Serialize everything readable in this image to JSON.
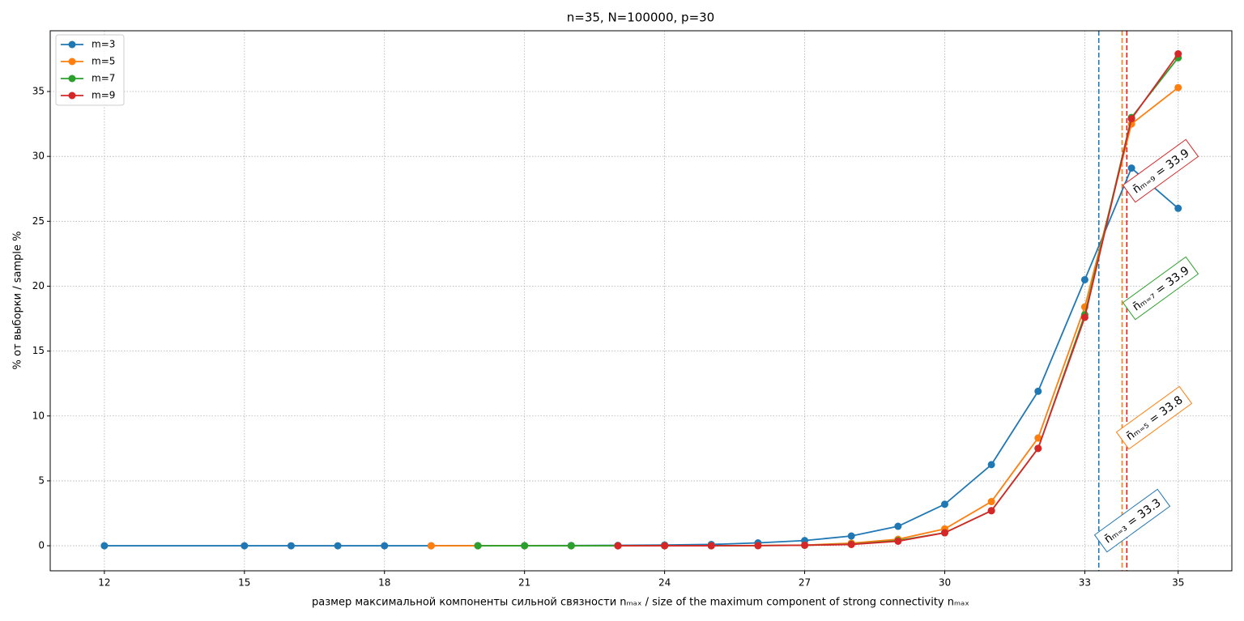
{
  "chart_data": {
    "type": "line",
    "title": "n=35, N=100000, p=30",
    "x_label": "размер максимальной компоненты сильной связности nₘₐₓ / size of the maximum component of strong connectivity nₘₐₓ",
    "y_label": "% от выборки / sample %",
    "xlim": [
      10.84,
      36.15
    ],
    "ylim": [
      -1.93,
      39.68
    ],
    "xticks": [
      12,
      15,
      18,
      21,
      24,
      27,
      30,
      33,
      35
    ],
    "yticks": [
      0,
      5,
      10,
      15,
      20,
      25,
      30,
      35
    ],
    "grid": true,
    "legend": "upper left",
    "series": [
      {
        "name": "m=3",
        "color": "#1f77b4",
        "x": [
          12,
          15,
          16,
          17,
          18,
          19,
          20,
          21,
          22,
          23,
          24,
          25,
          26,
          27,
          28,
          29,
          30,
          31,
          32,
          33,
          34,
          35
        ],
        "values": [
          0,
          0,
          0,
          0,
          0,
          0,
          0.01,
          0.01,
          0.02,
          0.03,
          0.06,
          0.1,
          0.22,
          0.4,
          0.75,
          1.5,
          3.2,
          6.25,
          11.9,
          20.5,
          29.1,
          26.0
        ]
      },
      {
        "name": "m=5",
        "color": "#ff7f0e",
        "x": [
          19,
          20,
          21,
          22,
          23,
          24,
          25,
          26,
          27,
          28,
          29,
          30,
          31,
          32,
          33,
          34,
          35
        ],
        "values": [
          0,
          0,
          0,
          0,
          0,
          0.01,
          0.01,
          0.02,
          0.05,
          0.2,
          0.5,
          1.3,
          3.4,
          8.3,
          18.4,
          32.5,
          35.3
        ]
      },
      {
        "name": "m=7",
        "color": "#2ca02c",
        "x": [
          20,
          21,
          22,
          23,
          24,
          25,
          26,
          27,
          28,
          29,
          30,
          31,
          32,
          33,
          34,
          35
        ],
        "values": [
          0,
          0,
          0,
          0,
          0,
          0,
          0.01,
          0.04,
          0.12,
          0.4,
          1.0,
          2.7,
          7.5,
          17.8,
          33.0,
          37.6
        ]
      },
      {
        "name": "m=9",
        "color": "#d62728",
        "x": [
          23,
          24,
          25,
          26,
          27,
          28,
          29,
          30,
          31,
          32,
          33,
          34,
          35
        ],
        "values": [
          0,
          0,
          0,
          0.01,
          0.04,
          0.1,
          0.35,
          1.0,
          2.7,
          7.5,
          17.6,
          32.9,
          37.9
        ]
      }
    ],
    "vlines": [
      {
        "value": 33.3,
        "color": "#1f77b4",
        "label": "n̄ₘ₌₃ = 33.3"
      },
      {
        "value": 33.8,
        "color": "#ff7f0e",
        "label": "n̄ₘ₌₅ = 33.8"
      },
      {
        "value": 33.9,
        "color": "#2ca02c",
        "label": "n̄ₘ₌₇ = 33.9"
      },
      {
        "value": 33.9,
        "color": "#d62728",
        "label": "n̄ₘ₌₉ = 33.9"
      }
    ]
  }
}
